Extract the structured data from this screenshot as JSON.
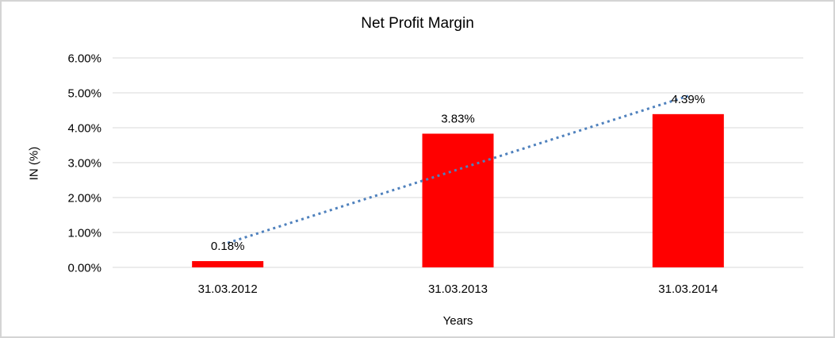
{
  "window": {
    "background": "#FFFFFF",
    "border_color": "#D4D4D4"
  },
  "chart_data": {
    "type": "bar",
    "title": "Net Profit Margin",
    "xlabel": "Years",
    "ylabel": "IN (%)",
    "categories": [
      "31.03.2012",
      "31.03.2013",
      "31.03.2014"
    ],
    "series": [
      {
        "name": "Net Profit Margin",
        "values": [
          0.18,
          3.83,
          4.39
        ]
      }
    ],
    "data_labels": [
      "0.18%",
      "3.83%",
      "4.39%"
    ],
    "ylim": [
      0,
      6
    ],
    "ytick_step": 1,
    "ytick_labels": [
      "0.00%",
      "1.00%",
      "2.00%",
      "3.00%",
      "4.00%",
      "5.00%",
      "6.00%"
    ],
    "grid": true,
    "legend": "none",
    "colors": {
      "bar": "#FF0000",
      "gridline": "#D9D9D9",
      "trendline": "#4F81BD",
      "text": "#000000"
    },
    "trendline": {
      "type": "linear",
      "style": "dotted",
      "start_value": 0.7,
      "end_value": 4.91
    }
  }
}
